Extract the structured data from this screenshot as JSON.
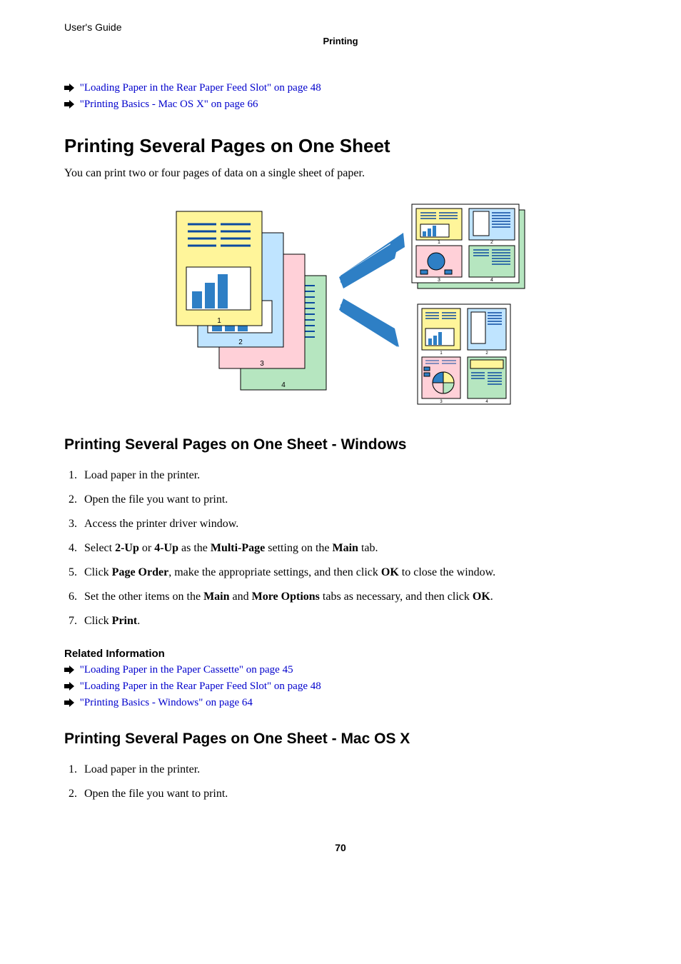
{
  "header": {
    "guide_label": "User's Guide",
    "section_label": "Printing"
  },
  "top_links": [
    {
      "text": "\"Loading Paper in the Rear Paper Feed Slot\" on page 48"
    },
    {
      "text": "\"Printing Basics - Mac OS X\" on page 66"
    }
  ],
  "section1": {
    "title": "Printing Several Pages on One Sheet",
    "intro": "You can print two or four pages of data on a single sheet of paper."
  },
  "figure": {
    "colors": {
      "page1": "#fff59a",
      "page2": "#bfe4ff",
      "page3": "#ffd0d8",
      "page4": "#b6e6c0",
      "stroke": "#000000",
      "text_line": "#0b4aa0",
      "bar_fill": "#2e7fc5",
      "arrow_blue": "#2e7fc5",
      "pie1": "#2e7fc5",
      "pie2": "#b6e6c0",
      "pie3": "#ffd0d8",
      "pie4": "#fff59a"
    }
  },
  "section2": {
    "title": "Printing Several Pages on One Sheet - Windows",
    "steps": [
      "Load paper in the printer.",
      "Open the file you want to print.",
      "Access the printer driver window.",
      "Select <b>2-Up</b> or <b>4-Up</b> as the <b>Multi-Page</b> setting on the <b>Main</b> tab.",
      "Click <b>Page Order</b>, make the appropriate settings, and then click <b>OK</b> to close the window.",
      "Set the other items on the <b>Main</b> and <b>More Options</b> tabs as necessary, and then click <b>OK</b>.",
      "Click <b>Print</b>."
    ],
    "related_heading": "Related Information",
    "related": [
      {
        "text": "\"Loading Paper in the Paper Cassette\" on page 45"
      },
      {
        "text": "\"Loading Paper in the Rear Paper Feed Slot\" on page 48"
      },
      {
        "text": "\"Printing Basics - Windows\" on page 64"
      }
    ]
  },
  "section3": {
    "title": "Printing Several Pages on One Sheet - Mac OS X",
    "steps": [
      "Load paper in the printer.",
      "Open the file you want to print."
    ]
  },
  "page_number": "70"
}
